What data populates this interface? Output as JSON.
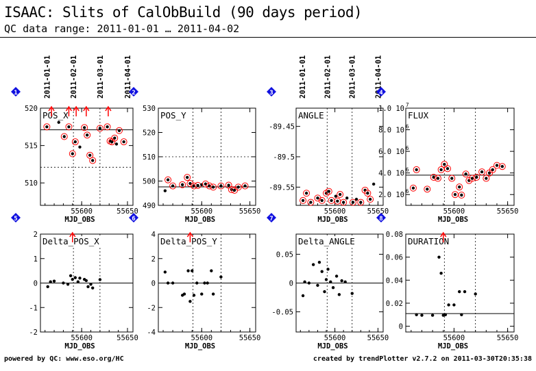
{
  "header": {
    "title": "ISAAC: Slits of CalObBuild (90 days period)",
    "subtitle": "QC data range: 2011-01-01 … 2011-04-02"
  },
  "footer": {
    "left": "powered by QC: www.eso.org/HC",
    "right": "created by trendPlotter v2.7.2 on 2011-03-30T20:35:38"
  },
  "date_ticks": [
    "2011-01-01",
    "2011-02-01",
    "2011-03-01",
    "2011-04-01"
  ],
  "colors": {
    "points": "#000000",
    "outlier": "#ff0000",
    "badge": "#1010e0",
    "axis": "#000000"
  },
  "chart_data": [
    {
      "panel_number": "1",
      "type": "scatter",
      "title": "POS_X",
      "xlabel": "MJD_OBS",
      "x_ticks": [
        "55600",
        "55650"
      ],
      "xlim": [
        55555,
        55656
      ],
      "y_ticks": [
        "510",
        "515",
        "520"
      ],
      "ylim": [
        507,
        520
      ],
      "ref_line": 517.1,
      "dashed_levels": [
        512.1
      ],
      "top_arrows": [
        55567,
        55586,
        55594,
        55605,
        55629
      ],
      "x": [
        55562,
        55575,
        55581,
        55586,
        55590,
        55593,
        55598,
        55603,
        55606,
        55609,
        55612,
        55620,
        55628,
        55631,
        55633,
        55636,
        55638,
        55641,
        55646
      ],
      "values": [
        517.5,
        518.1,
        516.2,
        517.5,
        513.9,
        515.5,
        514.8,
        517.4,
        516.4,
        513.7,
        513.0,
        517.3,
        517.5,
        515.6,
        515.5,
        516.0,
        515.2,
        517.0,
        515.5
      ],
      "outliers": [
        true,
        false,
        true,
        true,
        true,
        true,
        false,
        true,
        true,
        true,
        true,
        true,
        true,
        true,
        true,
        true,
        false,
        true,
        true
      ]
    },
    {
      "panel_number": "2",
      "type": "scatter",
      "title": "POS_Y",
      "xlabel": "MJD_OBS",
      "x_ticks": [
        "55600",
        "55650"
      ],
      "xlim": [
        55555,
        55656
      ],
      "y_ticks": [
        "490",
        "500",
        "510",
        "520",
        "530"
      ],
      "ylim": [
        490,
        530
      ],
      "ref_line": 497.6,
      "dashed_levels": [
        510
      ],
      "x": [
        55562,
        55565,
        55570,
        55580,
        55585,
        55588,
        55592,
        55596,
        55600,
        55604,
        55608,
        55612,
        55620,
        55628,
        55631,
        55634,
        55638,
        55645
      ],
      "values": [
        496.0,
        500.5,
        498.0,
        498.5,
        501.5,
        499.0,
        498.0,
        498.2,
        498.5,
        498.8,
        498.0,
        497.5,
        498.0,
        498.3,
        496.5,
        496.2,
        497.5,
        498.0
      ],
      "outliers": [
        false,
        true,
        true,
        true,
        true,
        true,
        true,
        true,
        false,
        true,
        true,
        true,
        true,
        true,
        true,
        true,
        true,
        true
      ]
    },
    {
      "panel_number": "3",
      "type": "scatter",
      "title": "ANGLE",
      "xlabel": "MJD_OBS",
      "x_ticks": [
        "55600",
        "55650"
      ],
      "xlim": [
        55555,
        55656
      ],
      "y_ticks": [
        "-89.45",
        "-89.5",
        "-89.55"
      ],
      "ylim": [
        -89.58,
        -89.42
      ],
      "ref_line": null,
      "dashed_levels": [],
      "x": [
        55563,
        55567,
        55572,
        55580,
        55585,
        55590,
        55593,
        55596,
        55601,
        55603,
        55606,
        55610,
        55614,
        55621,
        55625,
        55630,
        55635,
        55638,
        55641,
        55645
      ],
      "values": [
        -89.572,
        -89.56,
        -89.575,
        -89.568,
        -89.572,
        -89.56,
        -89.557,
        -89.572,
        -89.565,
        -89.573,
        -89.562,
        -89.575,
        -89.568,
        -89.575,
        -89.57,
        -89.575,
        -89.555,
        -89.56,
        -89.57,
        -89.545
      ],
      "outliers": [
        true,
        true,
        true,
        true,
        true,
        true,
        true,
        true,
        false,
        true,
        true,
        true,
        false,
        true,
        false,
        true,
        true,
        true,
        true,
        false
      ]
    },
    {
      "panel_number": "4",
      "type": "scatter",
      "title": "FLUX",
      "xlabel": "MJD_OBS",
      "x_ticks": [
        "55600",
        "55650"
      ],
      "xlim": [
        55555,
        55656
      ],
      "y_ticks": [
        "2.0 10^6",
        "4.0 10^6",
        "6.0 10^6",
        "8.0 10^6",
        "1.0 10^7"
      ],
      "ylim": [
        1000000,
        10000000
      ],
      "ref_line": 3800000,
      "dashed_levels": [],
      "x": [
        55562,
        55565,
        55575,
        55581,
        55585,
        55588,
        55591,
        55594,
        55598,
        55601,
        55605,
        55607,
        55611,
        55614,
        55617,
        55621,
        55626,
        55630,
        55633,
        55636,
        55640,
        55645
      ],
      "values": [
        2600000,
        4300000,
        2500000,
        3600000,
        3500000,
        4300000,
        4800000,
        4400000,
        3500000,
        2000000,
        2700000,
        1950000,
        3900000,
        3300000,
        3500000,
        3600000,
        4100000,
        3500000,
        4000000,
        4300000,
        4700000,
        4600000
      ],
      "outliers": [
        true,
        true,
        true,
        true,
        true,
        true,
        true,
        true,
        true,
        true,
        true,
        true,
        true,
        true,
        true,
        true,
        true,
        true,
        true,
        true,
        true,
        true
      ]
    },
    {
      "panel_number": "5",
      "type": "scatter",
      "title": "Delta_POS_X",
      "xlabel": "MJD_OBS",
      "x_ticks": [
        "55600",
        "55650"
      ],
      "xlim": [
        55555,
        55656
      ],
      "y_ticks": [
        "-2",
        "-1",
        "0",
        "1",
        "2"
      ],
      "ylim": [
        -2,
        2
      ],
      "ref_line": 0,
      "top_arrows": [
        55590
      ],
      "x": [
        55563,
        55566,
        55570,
        55580,
        55585,
        55588,
        55590,
        55593,
        55596,
        55598,
        55603,
        55605,
        55607,
        55610,
        55612,
        55620
      ],
      "values": [
        -0.15,
        0.05,
        0.08,
        0.0,
        -0.05,
        0.3,
        0.15,
        0.22,
        0.05,
        0.2,
        0.15,
        0.1,
        -0.15,
        -0.05,
        -0.2,
        0.14
      ]
    },
    {
      "panel_number": "6",
      "type": "scatter",
      "title": "Delta_POS_Y",
      "xlabel": "MJD_OBS",
      "x_ticks": [
        "55600",
        "55650"
      ],
      "xlim": [
        55555,
        55656
      ],
      "y_ticks": [
        "-4",
        "-2",
        "0",
        "2",
        "4"
      ],
      "ylim": [
        -4,
        4
      ],
      "ref_line": 0,
      "top_arrows": [
        55588
      ],
      "x": [
        55562,
        55565,
        55570,
        55580,
        55582,
        55586,
        55588,
        55590,
        55592,
        55595,
        55600,
        55603,
        55606,
        55610,
        55612,
        55620
      ],
      "values": [
        0.9,
        0.0,
        0.0,
        -1.0,
        -0.9,
        1.0,
        -1.5,
        1.0,
        -1.0,
        0.0,
        -0.9,
        0.0,
        0.0,
        1.0,
        -0.9,
        0.5
      ]
    },
    {
      "panel_number": "7",
      "type": "scatter",
      "title": "Delta_ANGLE",
      "xlabel": "MJD_OBS",
      "x_ticks": [
        "55600",
        "55650"
      ],
      "xlim": [
        55555,
        55656
      ],
      "y_ticks": [
        "-0.05",
        "0",
        "0.05"
      ],
      "ylim": [
        -0.085,
        0.085
      ],
      "ref_line": 0,
      "x": [
        55563,
        55565,
        55570,
        55575,
        55580,
        55582,
        55585,
        55588,
        55590,
        55592,
        55595,
        55598,
        55602,
        55605,
        55608,
        55612,
        55620
      ],
      "values": [
        -0.022,
        0.002,
        0.0,
        0.032,
        -0.004,
        0.036,
        0.02,
        -0.015,
        0.006,
        0.024,
        0.002,
        -0.008,
        0.012,
        -0.02,
        0.004,
        0.002,
        -0.018
      ]
    },
    {
      "panel_number": "8",
      "type": "scatter",
      "title": "DURATION",
      "xlabel": "MJD_OBS",
      "x_ticks": [
        "55600",
        "55650"
      ],
      "xlim": [
        55555,
        55656
      ],
      "y_ticks": [
        "0",
        "0.02",
        "0.04",
        "0.06",
        "0.08"
      ],
      "ylim": [
        -0.005,
        0.08
      ],
      "ref_line": 0.011,
      "dashed_levels": [],
      "top_arrows": [
        55590
      ],
      "x": [
        55565,
        55570,
        55580,
        55586,
        55588,
        55590,
        55592,
        55595,
        55600,
        55605,
        55607,
        55610,
        55620
      ],
      "values": [
        0.01,
        0.0095,
        0.0095,
        0.06,
        0.046,
        0.0095,
        0.01,
        0.0185,
        0.0185,
        0.03,
        0.01,
        0.03,
        0.028
      ]
    }
  ]
}
